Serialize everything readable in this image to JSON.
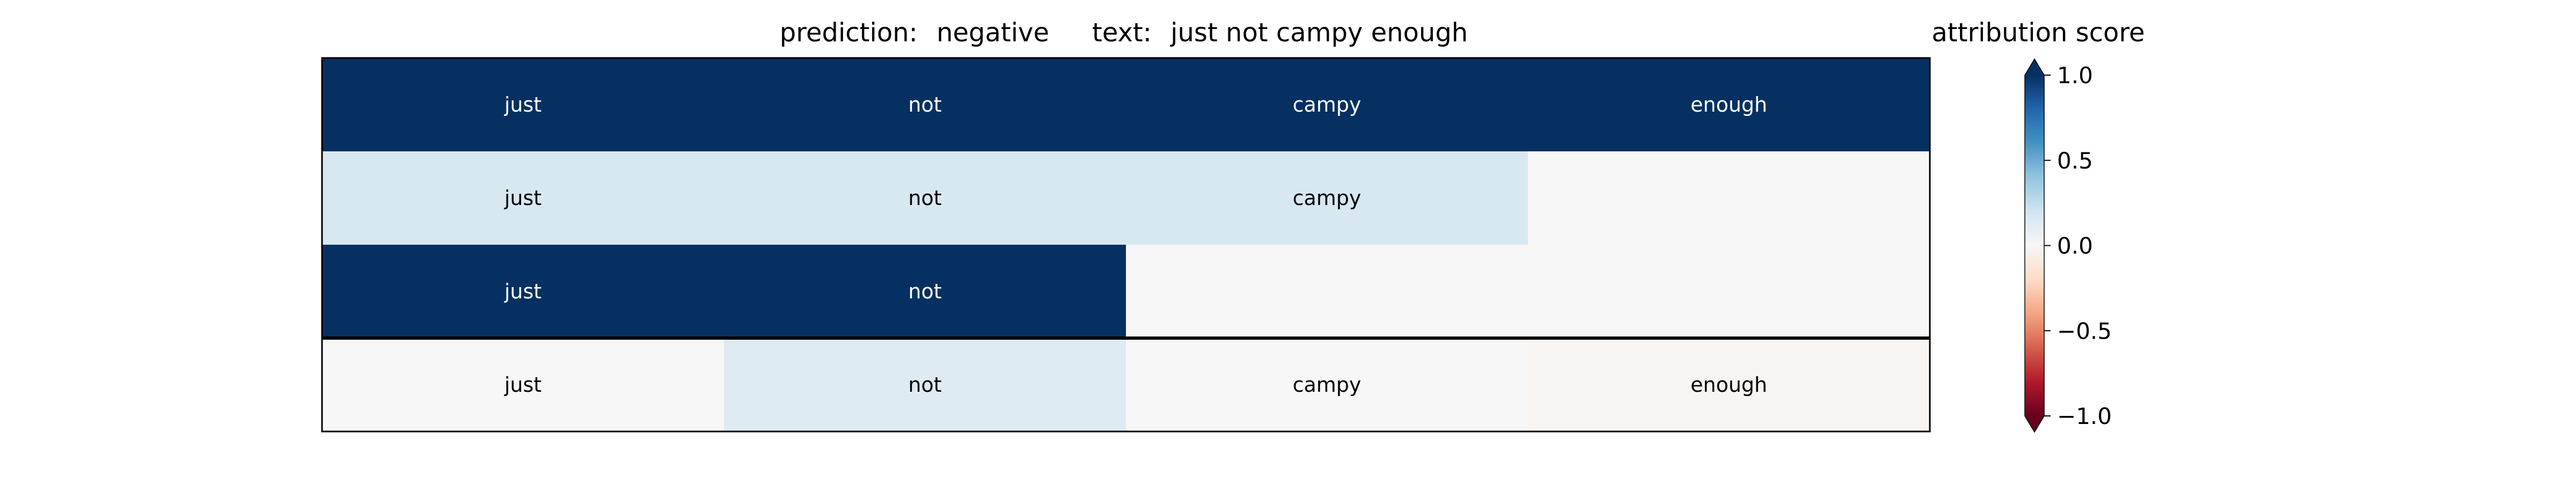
{
  "chart_data": {
    "type": "heatmap",
    "title": {
      "prediction_label": "prediction:",
      "prediction_value": "negative",
      "text_label": "text:",
      "text_value": "just not campy enough"
    },
    "columns": 4,
    "rows": [
      {
        "cells": [
          {
            "token": "just",
            "score": 1.0
          },
          {
            "token": "not",
            "score": 1.0
          },
          {
            "token": "campy",
            "score": 1.0
          },
          {
            "token": "enough",
            "score": 1.0
          }
        ]
      },
      {
        "cells": [
          {
            "token": "just",
            "score": 0.17
          },
          {
            "token": "not",
            "score": 0.17
          },
          {
            "token": "campy",
            "score": 0.17
          },
          {
            "token": "",
            "score": 0.0
          }
        ]
      },
      {
        "cells": [
          {
            "token": "just",
            "score": 1.0
          },
          {
            "token": "not",
            "score": 1.0
          },
          {
            "token": "",
            "score": 0.0
          },
          {
            "token": "",
            "score": 0.0
          }
        ]
      },
      {
        "cells": [
          {
            "token": "just",
            "score": 0.0
          },
          {
            "token": "not",
            "score": 0.13
          },
          {
            "token": "campy",
            "score": 0.0
          },
          {
            "token": "enough",
            "score": -0.02
          }
        ]
      }
    ],
    "separator_before_row": 3,
    "colorbar": {
      "title": "attribution score",
      "colormap": "RdBu",
      "range": [
        -1.0,
        1.0
      ],
      "ticks": [
        {
          "value": 1.0,
          "label": "1.0"
        },
        {
          "value": 0.5,
          "label": "0.5"
        },
        {
          "value": 0.0,
          "label": "0.0"
        },
        {
          "value": -0.5,
          "label": "−0.5"
        },
        {
          "value": -1.0,
          "label": "−1.0"
        }
      ],
      "extend": "both"
    }
  }
}
